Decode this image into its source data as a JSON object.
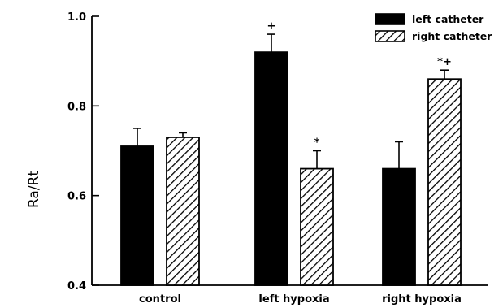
{
  "chart_data": {
    "type": "bar",
    "title": "",
    "xlabel": "",
    "ylabel": "Ra/Rt",
    "ylim": [
      0.4,
      1.0
    ],
    "yticks": [
      0.4,
      0.6,
      0.8,
      1.0
    ],
    "ytick_labels": [
      "0.4",
      "0.6",
      "0.8",
      "1.0"
    ],
    "grid": false,
    "legend_position": "top-right",
    "categories": [
      "control",
      "left hypoxia",
      "right hypoxia"
    ],
    "series": [
      {
        "name": "left catheter",
        "fill": "solid",
        "color": "#000000",
        "values": [
          0.71,
          0.92,
          0.66
        ],
        "errors": [
          0.04,
          0.04,
          0.06
        ],
        "annotations": [
          "",
          "+",
          ""
        ]
      },
      {
        "name": "right catheter",
        "fill": "hatched",
        "color": "#000000",
        "values": [
          0.73,
          0.66,
          0.86
        ],
        "errors": [
          0.01,
          0.04,
          0.02
        ],
        "annotations": [
          "",
          "*",
          "*+"
        ]
      }
    ]
  }
}
